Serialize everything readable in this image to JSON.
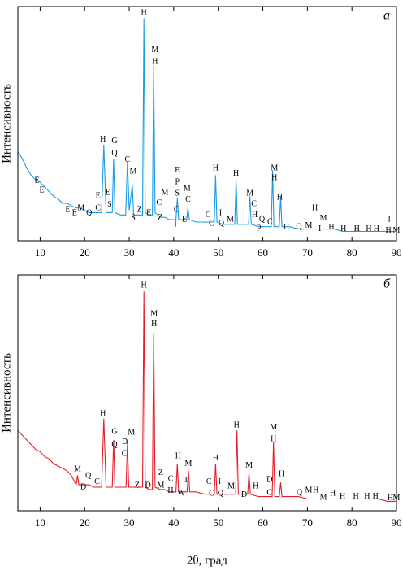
{
  "chart_data": [
    {
      "type": "line",
      "panel_label": "а",
      "ylabel": "Интенсивность",
      "color": "#1b9be3",
      "xlim": [
        5,
        90
      ],
      "xticks": [
        10,
        20,
        30,
        40,
        50,
        60,
        70,
        80,
        90
      ],
      "ylim": [
        0,
        100
      ],
      "x": [
        5,
        6,
        7,
        8,
        9,
        10,
        11,
        12,
        13,
        14,
        15,
        16,
        17,
        18,
        19,
        20,
        21,
        22,
        23,
        23.8,
        24.3,
        24.8,
        25.5,
        26.2,
        26.5,
        26.8,
        28,
        29.2,
        29.6,
        30,
        30.7,
        31,
        32,
        33,
        33.3,
        33.6,
        34.5,
        35.2,
        35.5,
        35.8,
        37,
        38,
        39,
        40.5,
        40.8,
        41.1,
        42,
        42.9,
        43.2,
        43.5,
        45,
        47,
        49.1,
        49.4,
        49.7,
        51,
        53.7,
        54,
        54.3,
        55.5,
        56.8,
        57.1,
        57.4,
        59,
        61.9,
        62.2,
        62.5,
        63.7,
        64,
        64.3,
        66,
        68,
        70,
        72,
        74,
        76,
        78,
        80,
        82,
        84,
        86,
        88,
        90
      ],
      "values": [
        38,
        35,
        31,
        28,
        26,
        25,
        23,
        21,
        19,
        18,
        16,
        16,
        15,
        14,
        14,
        13,
        12,
        12,
        12,
        12,
        41,
        12,
        12,
        12,
        35,
        12,
        11,
        11,
        34,
        13,
        24,
        11,
        11,
        11,
        95,
        12,
        11,
        11,
        75,
        12,
        10,
        10,
        9,
        9,
        18,
        9,
        9,
        9,
        14,
        9,
        8,
        8,
        8,
        28,
        8,
        7,
        7,
        26,
        7,
        7,
        7,
        19,
        7,
        6,
        6,
        30,
        6,
        6,
        19,
        6,
        6,
        5,
        5,
        5,
        5,
        5,
        4,
        4,
        4,
        4,
        4,
        4,
        4
      ],
      "annotations": [
        {
          "text": "H",
          "x": 33.3,
          "y": 97.2
        },
        {
          "text": "M",
          "x": 35.8,
          "y": 81.3
        },
        {
          "text": "H",
          "x": 35.8,
          "y": 76.4
        },
        {
          "text": "H",
          "x": 24.1,
          "y": 43.1
        },
        {
          "text": "G",
          "x": 26.7,
          "y": 42.4
        },
        {
          "text": "Q",
          "x": 26.7,
          "y": 37.2
        },
        {
          "text": "C",
          "x": 29.6,
          "y": 34.4
        },
        {
          "text": "M",
          "x": 30.9,
          "y": 29.5
        },
        {
          "text": "E",
          "x": 9.3,
          "y": 25.7
        },
        {
          "text": "E",
          "x": 10.4,
          "y": 21.5
        },
        {
          "text": "E",
          "x": 16.2,
          "y": 13.2
        },
        {
          "text": "E",
          "x": 17.7,
          "y": 11.8
        },
        {
          "text": "M",
          "x": 19.2,
          "y": 13.9
        },
        {
          "text": "Q",
          "x": 21.0,
          "y": 11.8
        },
        {
          "text": "C",
          "x": 23.0,
          "y": 13.9
        },
        {
          "text": "E",
          "x": 23.0,
          "y": 19.1
        },
        {
          "text": "E",
          "x": 25.2,
          "y": 20.5
        },
        {
          "text": "S",
          "x": 25.6,
          "y": 15.3
        },
        {
          "text": "S",
          "x": 30.9,
          "y": 9.7
        },
        {
          "text": "Z",
          "x": 32.3,
          "y": 13.2
        },
        {
          "text": "E",
          "x": 34.4,
          "y": 11.8
        },
        {
          "text": "C",
          "x": 36.7,
          "y": 16.0
        },
        {
          "text": "Z",
          "x": 36.9,
          "y": 9.7
        },
        {
          "text": "M",
          "x": 38.0,
          "y": 20.5
        },
        {
          "text": "E",
          "x": 40.8,
          "y": 29.9
        },
        {
          "text": "P",
          "x": 40.8,
          "y": 25.0
        },
        {
          "text": "S",
          "x": 40.8,
          "y": 20.1
        },
        {
          "text": "M",
          "x": 43.0,
          "y": 22.2
        },
        {
          "text": "C",
          "x": 43.2,
          "y": 17.4
        },
        {
          "text": "C",
          "x": 40.6,
          "y": 13.2
        },
        {
          "text": "I",
          "x": 40.4,
          "y": 6.9
        },
        {
          "text": "E",
          "x": 42.4,
          "y": 9.0
        },
        {
          "text": "H",
          "x": 49.4,
          "y": 30.9
        },
        {
          "text": "C",
          "x": 47.7,
          "y": 10.8
        },
        {
          "text": "C",
          "x": 48.5,
          "y": 7.3
        },
        {
          "text": "I",
          "x": 50.5,
          "y": 11.8
        },
        {
          "text": "Q",
          "x": 50.7,
          "y": 7.3
        },
        {
          "text": "M",
          "x": 52.7,
          "y": 9.0
        },
        {
          "text": "H",
          "x": 54.0,
          "y": 28.5
        },
        {
          "text": "M",
          "x": 57.1,
          "y": 20.1
        },
        {
          "text": "C",
          "x": 58.0,
          "y": 15.6
        },
        {
          "text": "H",
          "x": 58.2,
          "y": 10.8
        },
        {
          "text": "P",
          "x": 59.1,
          "y": 5.2
        },
        {
          "text": "Q",
          "x": 59.8,
          "y": 9.0
        },
        {
          "text": "C",
          "x": 61.6,
          "y": 8.0
        },
        {
          "text": "M",
          "x": 62.6,
          "y": 30.9
        },
        {
          "text": "H",
          "x": 62.6,
          "y": 26.7
        },
        {
          "text": "H",
          "x": 63.8,
          "y": 18.4
        },
        {
          "text": "C",
          "x": 65.3,
          "y": 5.6
        },
        {
          "text": "Q",
          "x": 68.1,
          "y": 5.9
        },
        {
          "text": "M",
          "x": 70.3,
          "y": 6.3
        },
        {
          "text": "H",
          "x": 71.7,
          "y": 13.9
        },
        {
          "text": "M",
          "x": 73.6,
          "y": 9.4
        },
        {
          "text": "I",
          "x": 72.8,
          "y": 4.9
        },
        {
          "text": "H",
          "x": 75.4,
          "y": 5.6
        },
        {
          "text": "H",
          "x": 78.1,
          "y": 4.9
        },
        {
          "text": "H",
          "x": 81.1,
          "y": 4.9
        },
        {
          "text": "H",
          "x": 83.8,
          "y": 4.9
        },
        {
          "text": "H",
          "x": 85.5,
          "y": 4.9
        },
        {
          "text": "I",
          "x": 88.4,
          "y": 9.0
        },
        {
          "text": "H",
          "x": 88.2,
          "y": 4.2
        },
        {
          "text": "M",
          "x": 90.0,
          "y": 4.2
        }
      ]
    },
    {
      "type": "line",
      "panel_label": "б",
      "ylabel": "Интенсивность",
      "xlabel": "2θ, град",
      "color": "#e31e2a",
      "xlim": [
        5,
        90
      ],
      "xticks": [
        10,
        20,
        30,
        40,
        50,
        60,
        70,
        80,
        90
      ],
      "ylim": [
        0,
        100
      ],
      "x": [
        5,
        6,
        7,
        8,
        9,
        10,
        11,
        12,
        13,
        14,
        15,
        16,
        17,
        18.1,
        18.4,
        18.7,
        20,
        21,
        22,
        23,
        23.8,
        24.3,
        24.8,
        26.2,
        26.5,
        26.8,
        28,
        29.3,
        29.6,
        29.9,
        31,
        32,
        33,
        33.3,
        33.6,
        34.5,
        35.2,
        35.5,
        35.8,
        37,
        38,
        39,
        40.5,
        40.8,
        41.1,
        42,
        43,
        43.3,
        43.6,
        45,
        47,
        49.1,
        49.4,
        49.7,
        51,
        53.9,
        54.2,
        54.5,
        56,
        56.6,
        56.9,
        57.2,
        59,
        62.1,
        62.4,
        62.7,
        63.7,
        64,
        64.3,
        66,
        68,
        70,
        72,
        74,
        76,
        78,
        80,
        82,
        84,
        86,
        88,
        90
      ],
      "values": [
        34,
        32,
        30,
        28,
        26,
        25,
        23,
        22,
        20,
        19,
        18,
        17,
        15,
        11,
        15,
        11,
        11,
        11,
        10,
        10,
        10,
        39,
        10,
        10,
        30,
        10,
        10,
        10,
        29,
        10,
        10,
        10,
        10,
        93,
        10,
        9,
        9,
        75,
        10,
        9,
        9,
        8,
        8,
        20,
        8,
        8,
        8,
        17,
        8,
        8,
        7,
        7,
        20,
        7,
        7,
        7,
        34,
        7,
        7,
        7,
        16,
        7,
        6,
        6,
        29,
        6,
        6,
        12,
        6,
        6,
        6,
        5,
        5,
        5,
        5,
        5,
        5,
        5,
        5,
        5,
        4,
        4
      ],
      "annotations": [
        {
          "text": "H",
          "x": 33.3,
          "y": 95.5
        },
        {
          "text": "M",
          "x": 35.6,
          "y": 83.4
        },
        {
          "text": "H",
          "x": 35.6,
          "y": 79.0
        },
        {
          "text": "H",
          "x": 24.1,
          "y": 41.0
        },
        {
          "text": "G",
          "x": 26.7,
          "y": 33.4
        },
        {
          "text": "Q",
          "x": 26.7,
          "y": 27.9
        },
        {
          "text": "M",
          "x": 30.5,
          "y": 33.1
        },
        {
          "text": "D",
          "x": 29.0,
          "y": 29.0
        },
        {
          "text": "C",
          "x": 28.9,
          "y": 24.1
        },
        {
          "text": "M",
          "x": 18.4,
          "y": 17.6
        },
        {
          "text": "D",
          "x": 19.7,
          "y": 10.0
        },
        {
          "text": "Q",
          "x": 20.8,
          "y": 14.8
        },
        {
          "text": "C",
          "x": 22.8,
          "y": 12.1
        },
        {
          "text": "Z",
          "x": 31.8,
          "y": 10.7
        },
        {
          "text": "D",
          "x": 34.2,
          "y": 10.7
        },
        {
          "text": "Z",
          "x": 37.1,
          "y": 15.9
        },
        {
          "text": "M",
          "x": 37.1,
          "y": 10.7
        },
        {
          "text": "C",
          "x": 39.3,
          "y": 13.4
        },
        {
          "text": "H",
          "x": 39.3,
          "y": 8.3
        },
        {
          "text": "H",
          "x": 41.0,
          "y": 23.1
        },
        {
          "text": "W",
          "x": 41.7,
          "y": 7.2
        },
        {
          "text": "I",
          "x": 42.8,
          "y": 12.8
        },
        {
          "text": "M",
          "x": 43.3,
          "y": 19.7
        },
        {
          "text": "H",
          "x": 49.4,
          "y": 22.1
        },
        {
          "text": "C",
          "x": 47.9,
          "y": 12.1
        },
        {
          "text": "C",
          "x": 48.5,
          "y": 7.2
        },
        {
          "text": "I",
          "x": 50.3,
          "y": 12.1
        },
        {
          "text": "Q",
          "x": 50.5,
          "y": 7.2
        },
        {
          "text": "M",
          "x": 52.9,
          "y": 10.3
        },
        {
          "text": "H",
          "x": 54.1,
          "y": 36.2
        },
        {
          "text": "D",
          "x": 55.8,
          "y": 6.6
        },
        {
          "text": "M",
          "x": 56.9,
          "y": 19.0
        },
        {
          "text": "H",
          "x": 58.4,
          "y": 10.3
        },
        {
          "text": "D",
          "x": 61.5,
          "y": 13.1
        },
        {
          "text": "C",
          "x": 61.5,
          "y": 7.6
        },
        {
          "text": "M",
          "x": 62.4,
          "y": 35.2
        },
        {
          "text": "H",
          "x": 62.4,
          "y": 30.3
        },
        {
          "text": "H",
          "x": 64.2,
          "y": 15.5
        },
        {
          "text": "Q",
          "x": 68.2,
          "y": 7.6
        },
        {
          "text": "M",
          "x": 70.3,
          "y": 8.6
        },
        {
          "text": "H",
          "x": 71.9,
          "y": 8.6
        },
        {
          "text": "M",
          "x": 73.6,
          "y": 5.5
        },
        {
          "text": "H",
          "x": 75.7,
          "y": 7.2
        },
        {
          "text": "H",
          "x": 77.9,
          "y": 5.9
        },
        {
          "text": "H",
          "x": 80.9,
          "y": 5.9
        },
        {
          "text": "H",
          "x": 83.4,
          "y": 5.9
        },
        {
          "text": "H",
          "x": 85.3,
          "y": 5.9
        },
        {
          "text": "H",
          "x": 88.6,
          "y": 5.2
        },
        {
          "text": "M",
          "x": 90.0,
          "y": 5.2
        }
      ]
    }
  ]
}
